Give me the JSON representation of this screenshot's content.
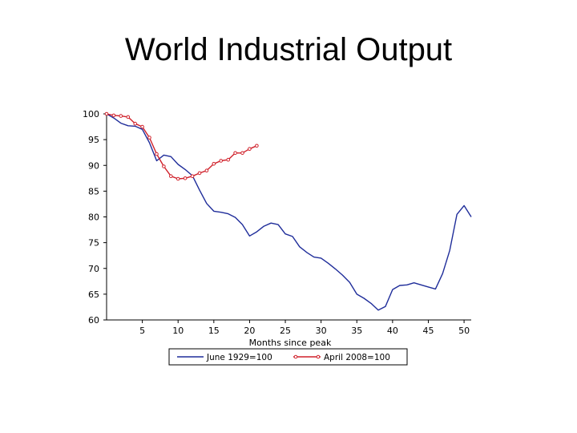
{
  "slide": {
    "title": "World Industrial Output"
  },
  "chart_data": {
    "type": "line",
    "xlabel": "Months since peak",
    "ylabel": "",
    "xlim": [
      0,
      51
    ],
    "ylim": [
      60,
      100
    ],
    "xticks": [
      5,
      10,
      15,
      20,
      25,
      30,
      35,
      40,
      45,
      50
    ],
    "yticks": [
      60,
      65,
      70,
      75,
      80,
      85,
      90,
      95,
      100
    ],
    "legend_position": "bottom",
    "grid": false,
    "series": [
      {
        "name": "June 1929=100",
        "color": "#1f2d9a",
        "markers": false,
        "x": [
          0,
          1,
          2,
          3,
          4,
          5,
          6,
          7,
          8,
          9,
          10,
          11,
          12,
          13,
          14,
          15,
          16,
          17,
          18,
          19,
          20,
          21,
          22,
          23,
          24,
          25,
          26,
          27,
          28,
          29,
          30,
          31,
          32,
          33,
          34,
          35,
          36,
          37,
          38,
          39,
          40,
          41,
          42,
          43,
          44,
          45,
          46,
          47,
          48,
          49,
          50,
          51
        ],
        "values": [
          100,
          99.2,
          98.2,
          97.7,
          97.6,
          97.0,
          94.4,
          90.9,
          92.0,
          91.7,
          90.2,
          89.2,
          88.0,
          85.2,
          82.6,
          81.1,
          80.9,
          80.6,
          79.9,
          78.5,
          76.3,
          77.1,
          78.2,
          78.8,
          78.5,
          76.7,
          76.2,
          74.2,
          73.1,
          72.2,
          72.0,
          71.0,
          69.9,
          68.7,
          67.3,
          65.0,
          64.2,
          63.2,
          61.9,
          62.6,
          65.9,
          66.7,
          66.8,
          67.2,
          66.8,
          66.4,
          66.0,
          69.0,
          73.5,
          80.5,
          82.2,
          80.0
        ]
      },
      {
        "name": "April 2008=100",
        "color": "#d0202a",
        "markers": true,
        "x": [
          0,
          1,
          2,
          3,
          4,
          5,
          6,
          7,
          8,
          9,
          10,
          11,
          12,
          13,
          14,
          15,
          16,
          17,
          18,
          19,
          20,
          21
        ],
        "values": [
          100,
          99.7,
          99.6,
          99.4,
          98.1,
          97.5,
          95.4,
          92.2,
          89.8,
          87.9,
          87.4,
          87.5,
          87.9,
          88.5,
          89.0,
          90.3,
          90.9,
          91.1,
          92.4,
          92.4,
          93.2,
          93.8
        ]
      }
    ]
  }
}
